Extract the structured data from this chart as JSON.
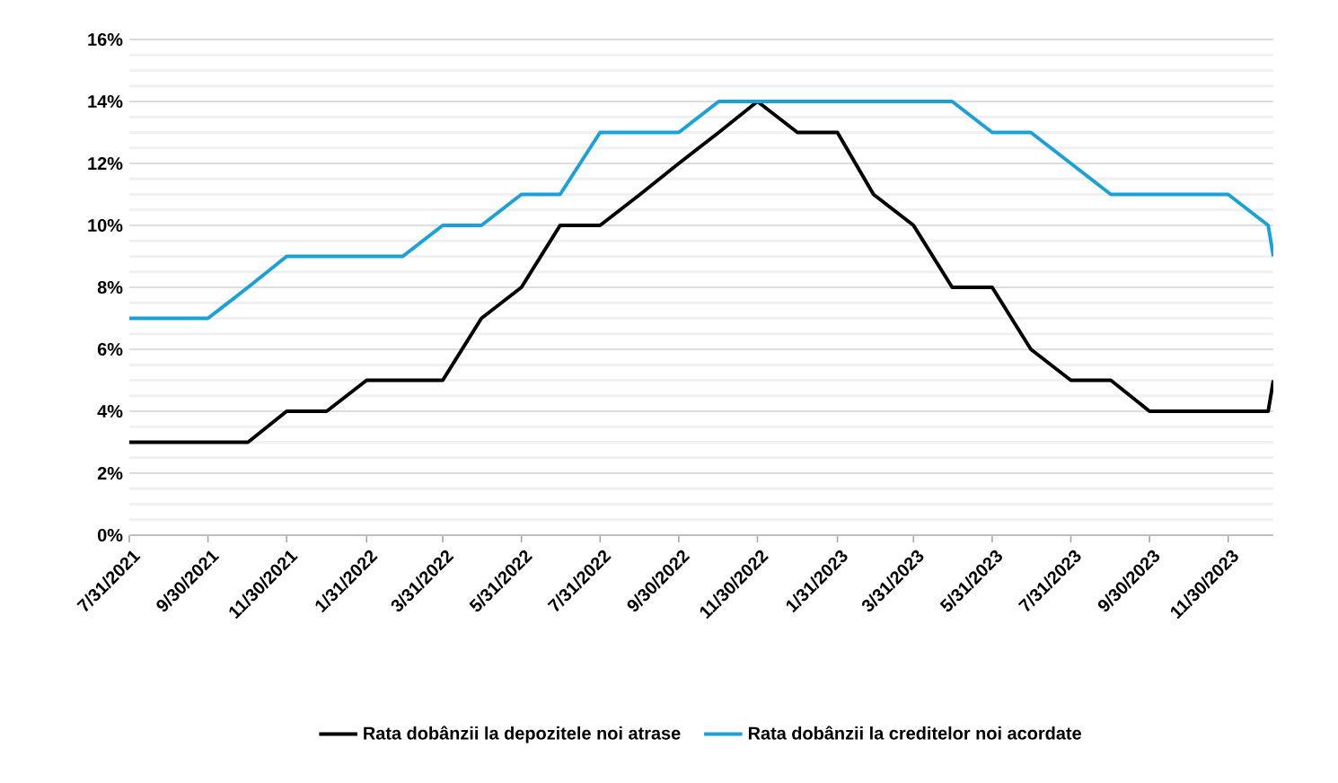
{
  "chart_data": {
    "type": "line",
    "x": [
      "2021-07-31",
      "2021-08-31",
      "2021-09-30",
      "2021-10-31",
      "2021-11-30",
      "2021-12-31",
      "2022-01-31",
      "2022-02-28",
      "2022-03-31",
      "2022-04-30",
      "2022-05-31",
      "2022-06-30",
      "2022-07-31",
      "2022-08-31",
      "2022-09-30",
      "2022-10-31",
      "2022-11-30",
      "2022-12-31",
      "2023-01-31",
      "2023-02-28",
      "2023-03-31",
      "2023-04-30",
      "2023-05-31",
      "2023-06-30",
      "2023-07-31",
      "2023-08-31",
      "2023-09-30",
      "2023-10-31",
      "2023-11-30",
      "2023-12-31",
      "2024-01-04"
    ],
    "series": [
      {
        "name": "Rata dobânzii la depozitele noi atrase",
        "color": "#000000",
        "values": [
          3,
          3,
          3,
          3,
          4,
          4,
          5,
          5,
          5,
          7,
          8,
          10,
          10,
          11,
          12,
          13,
          14,
          13,
          13,
          11,
          10,
          8,
          8,
          6,
          5,
          5,
          4,
          4,
          4,
          4,
          5
        ]
      },
      {
        "name": "Rata dobânzii la creditelor noi acordate",
        "color": "#1ba1da",
        "values": [
          7,
          7,
          7,
          8,
          9,
          9,
          9,
          9,
          10,
          10,
          11,
          11,
          13,
          13,
          13,
          14,
          14,
          14,
          14,
          14,
          14,
          14,
          13,
          13,
          12,
          11,
          11,
          11,
          11,
          10,
          9
        ]
      }
    ],
    "xlim": [
      "2021-07-31",
      "2024-01-04"
    ],
    "xticks": [
      {
        "value": "2021-07-31",
        "label": "7/31/2021"
      },
      {
        "value": "2021-09-30",
        "label": "9/30/2021"
      },
      {
        "value": "2021-11-30",
        "label": "11/30/2021"
      },
      {
        "value": "2022-01-31",
        "label": "1/31/2022"
      },
      {
        "value": "2022-03-31",
        "label": "3/31/2022"
      },
      {
        "value": "2022-05-31",
        "label": "5/31/2022"
      },
      {
        "value": "2022-07-31",
        "label": "7/31/2022"
      },
      {
        "value": "2022-09-30",
        "label": "9/30/2022"
      },
      {
        "value": "2022-11-30",
        "label": "11/30/2022"
      },
      {
        "value": "2023-01-31",
        "label": "1/31/2023"
      },
      {
        "value": "2023-03-31",
        "label": "3/31/2023"
      },
      {
        "value": "2023-05-31",
        "label": "5/31/2023"
      },
      {
        "value": "2023-07-31",
        "label": "7/31/2023"
      },
      {
        "value": "2023-09-30",
        "label": "9/30/2023"
      },
      {
        "value": "2023-11-30",
        "label": "11/30/2023"
      }
    ],
    "ylim": [
      0,
      16
    ],
    "yticks": [
      {
        "value": 0,
        "label": "0%"
      },
      {
        "value": 2,
        "label": "2%"
      },
      {
        "value": 4,
        "label": "4%"
      },
      {
        "value": 6,
        "label": "6%"
      },
      {
        "value": 8,
        "label": "8%"
      },
      {
        "value": 10,
        "label": "10%"
      },
      {
        "value": 12,
        "label": "12%"
      },
      {
        "value": 14,
        "label": "14%"
      },
      {
        "value": 16,
        "label": "16%"
      }
    ],
    "grid": "y",
    "legend": "bottom",
    "marker": "none",
    "line_style": "solid"
  }
}
